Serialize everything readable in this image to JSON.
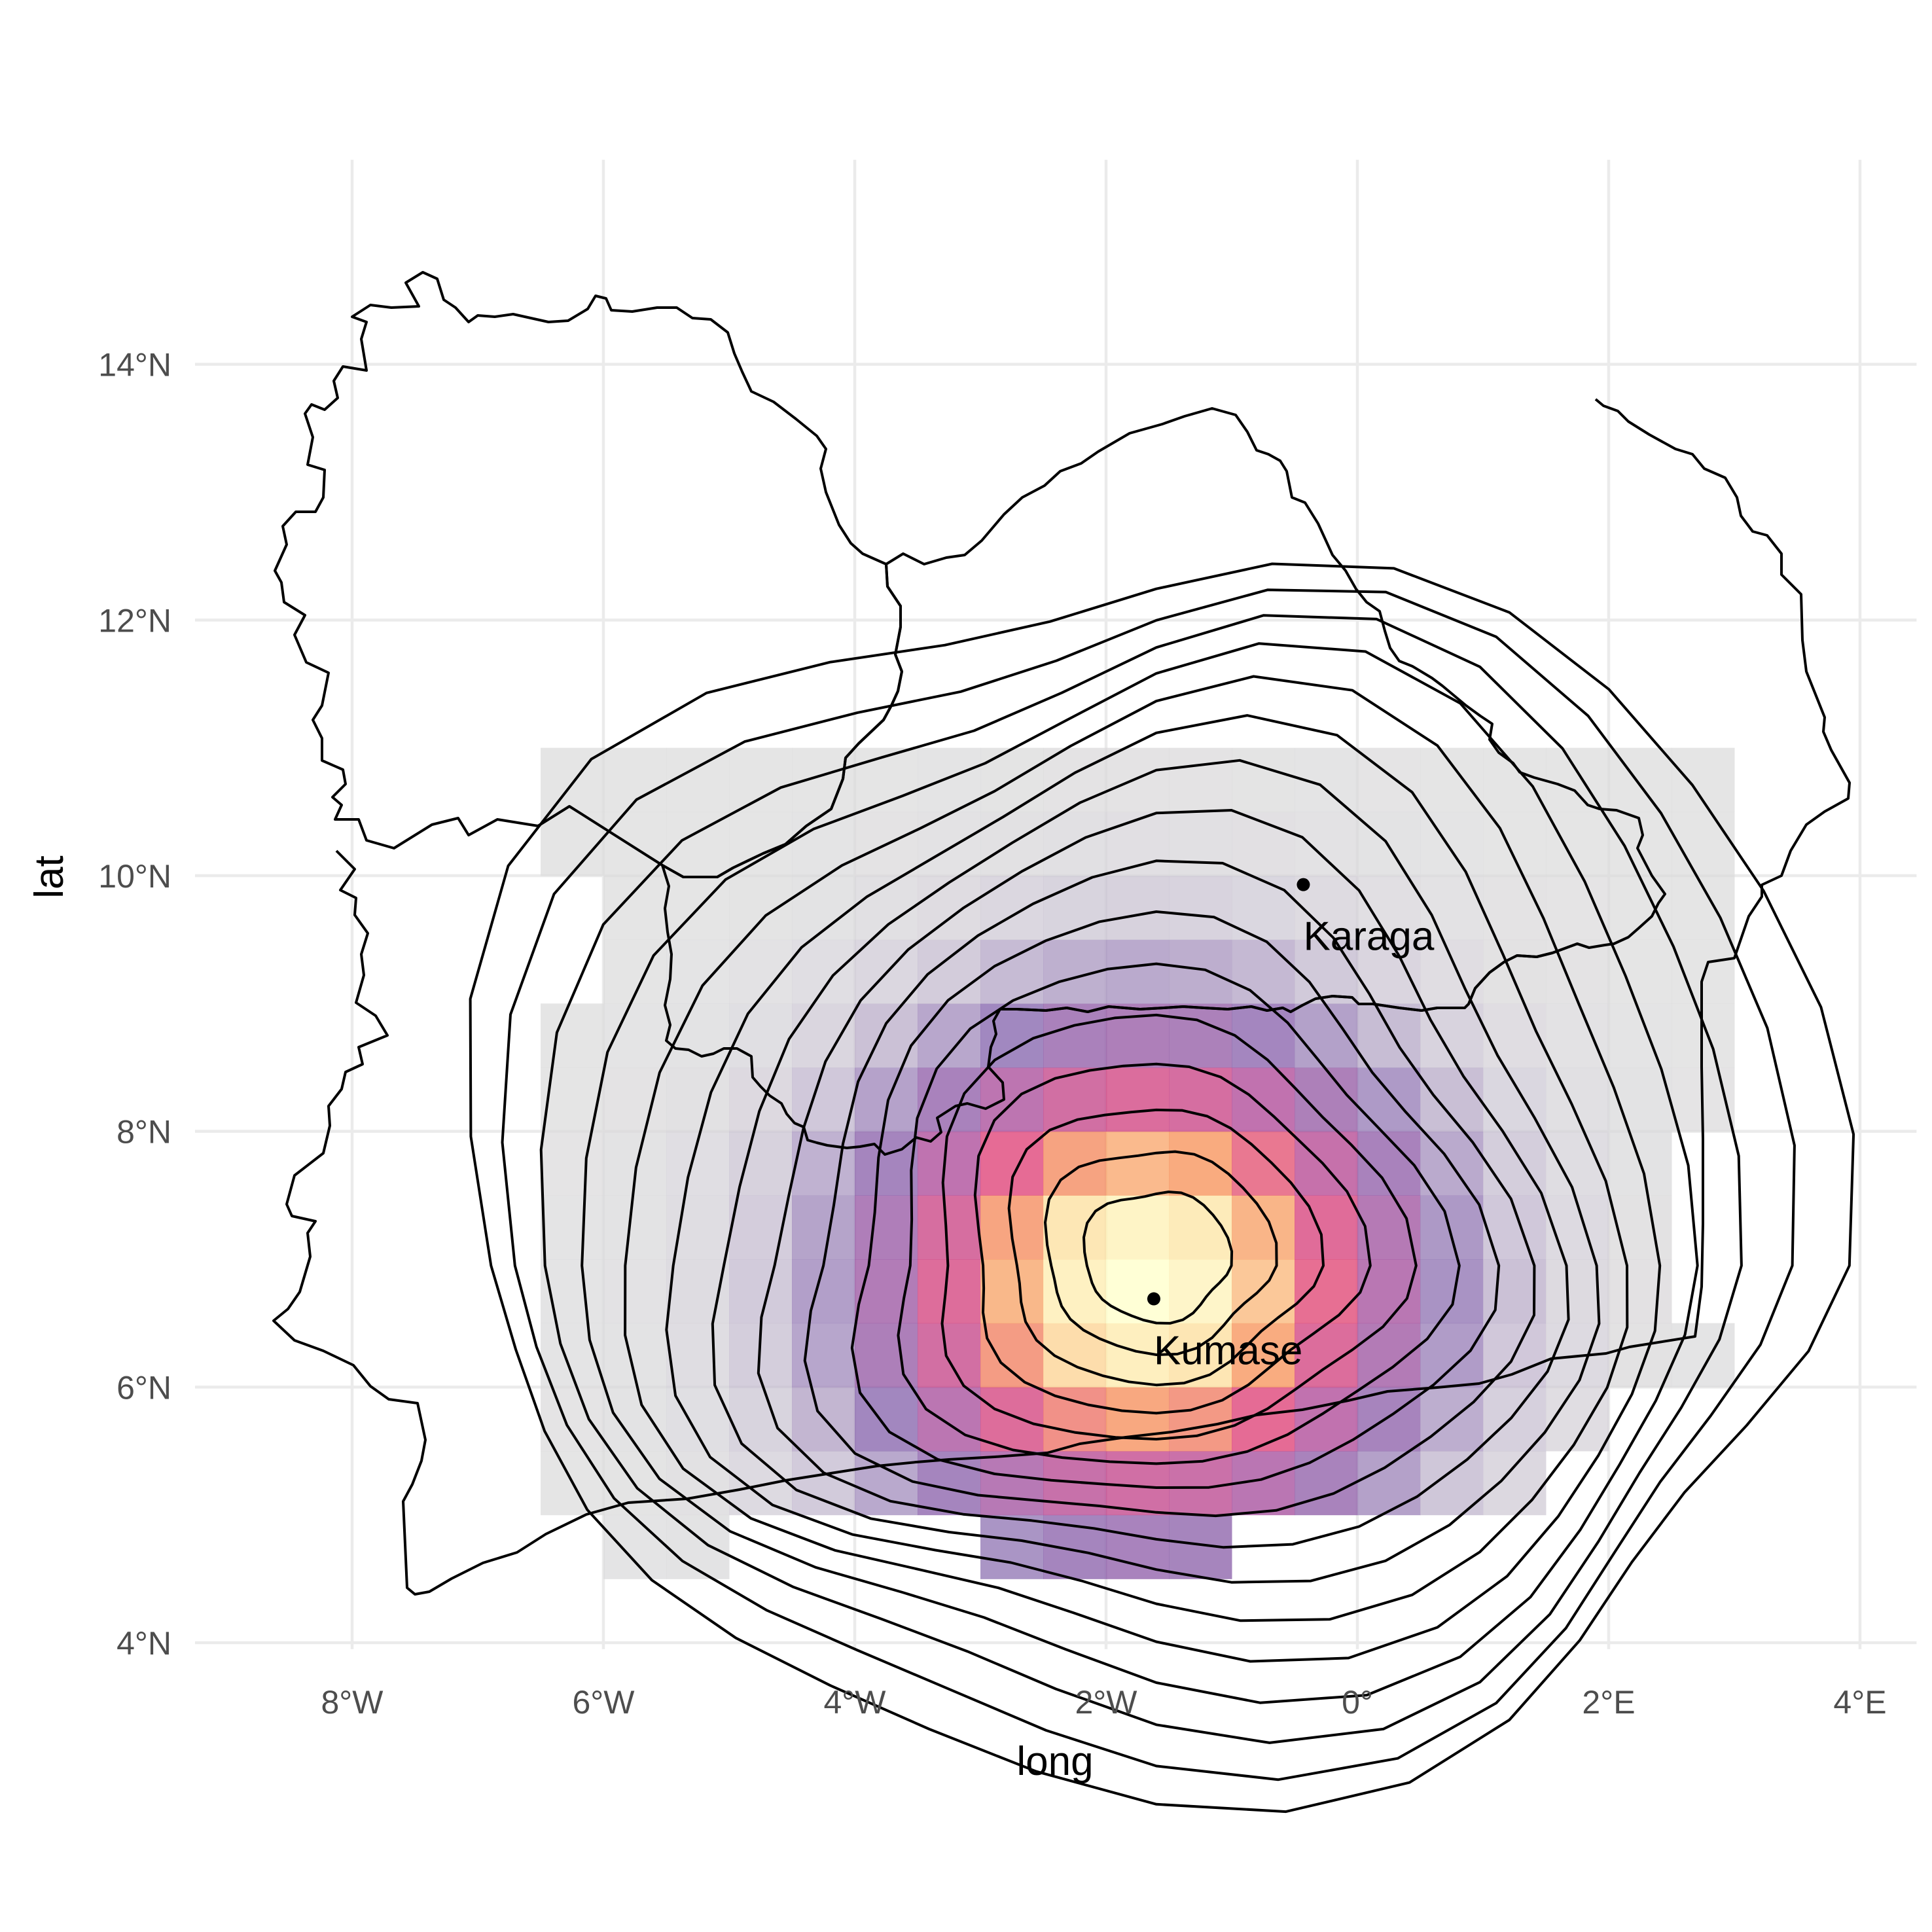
{
  "axes": {
    "x_title": "long",
    "y_title": "lat",
    "x_ticks": [
      {
        "value": -8,
        "label": "8°W"
      },
      {
        "value": -6,
        "label": "6°W"
      },
      {
        "value": -4,
        "label": "4°W"
      },
      {
        "value": -2,
        "label": "2°W"
      },
      {
        "value": 0,
        "label": "0°"
      },
      {
        "value": 2,
        "label": "2°E"
      },
      {
        "value": 4,
        "label": "4°E"
      }
    ],
    "y_ticks": [
      {
        "value": 4,
        "label": "4°N"
      },
      {
        "value": 6,
        "label": "6°N"
      },
      {
        "value": 8,
        "label": "8°N"
      },
      {
        "value": 10,
        "label": "10°N"
      },
      {
        "value": 12,
        "label": "12°N"
      },
      {
        "value": 14,
        "label": "14°N"
      }
    ],
    "xlim": [
      -9.25,
      4.45
    ],
    "ylim": [
      3.95,
      15.6
    ]
  },
  "places": [
    {
      "name": "Kumase",
      "long": -1.62,
      "lat": 6.69
    },
    {
      "name": "Karaga",
      "long": -0.43,
      "lat": 9.93
    }
  ],
  "colors": {
    "background_cell": "#d9d9d9",
    "border": "#000000",
    "contour": "#000000",
    "point": "#000000",
    "density_scale": [
      "#dcdcdc",
      "#8a6ab0",
      "#b04f9c",
      "#e0467a",
      "#f7965f",
      "#fde0a0",
      "#ffffcc"
    ]
  },
  "chart_data": {
    "type": "heatmap",
    "description_of_layers": [
      "country borders",
      "binned density raster",
      "density contours",
      "city points"
    ],
    "cell_size_deg": 0.5,
    "density_center": {
      "long": -1.7,
      "lat": 6.8
    },
    "points": [
      {
        "label": "Kumase",
        "long": -1.62,
        "lat": 6.69
      },
      {
        "label": "Karaga",
        "long": -0.43,
        "lat": 9.93
      }
    ],
    "contour_count": 16
  }
}
